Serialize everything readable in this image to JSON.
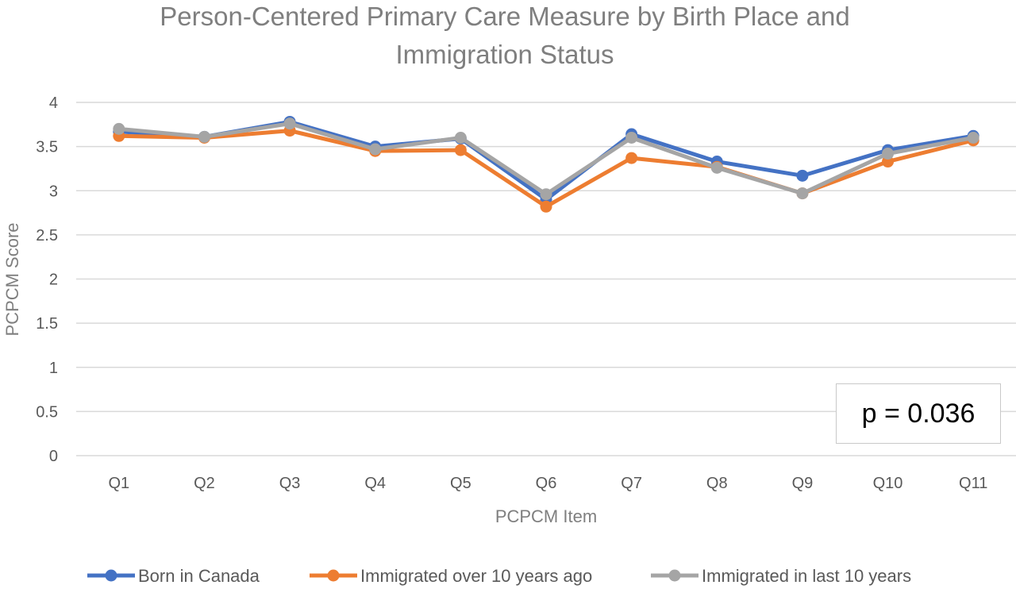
{
  "chart_data": {
    "type": "line",
    "title_lines": [
      "Person-Centered Primary Care Measure by Birth Place and",
      "Immigration Status"
    ],
    "xlabel": "PCPCM Item",
    "ylabel": "PCPCM Score",
    "categories": [
      "Q1",
      "Q2",
      "Q3",
      "Q4",
      "Q5",
      "Q6",
      "Q7",
      "Q8",
      "Q9",
      "Q10",
      "Q11"
    ],
    "ylim": [
      0,
      4
    ],
    "yticks": [
      "0",
      "0.5",
      "1",
      "1.5",
      "2",
      "2.5",
      "3",
      "3.5",
      "4"
    ],
    "grid": true,
    "legend_position": "bottom",
    "series": [
      {
        "name": "Born in Canada",
        "color": "#4472c4",
        "values": [
          3.67,
          3.61,
          3.78,
          3.5,
          3.59,
          2.9,
          3.64,
          3.33,
          3.17,
          3.46,
          3.62
        ]
      },
      {
        "name": "Immigrated over 10 years ago",
        "color": "#ed7d31",
        "values": [
          3.62,
          3.6,
          3.68,
          3.45,
          3.46,
          2.82,
          3.37,
          3.27,
          2.97,
          3.33,
          3.57
        ]
      },
      {
        "name": "Immigrated in last 10 years",
        "color": "#a5a5a5",
        "values": [
          3.7,
          3.61,
          3.76,
          3.47,
          3.6,
          2.96,
          3.6,
          3.26,
          2.97,
          3.42,
          3.6
        ]
      }
    ],
    "annotation": "p = 0.036"
  }
}
